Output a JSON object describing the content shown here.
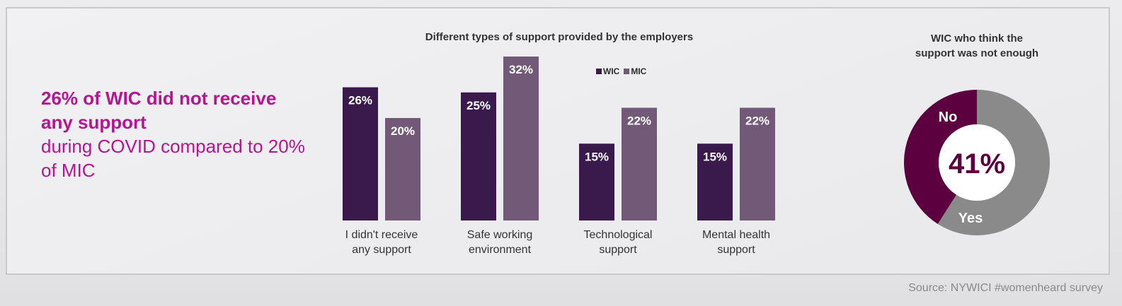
{
  "headline": {
    "strong": "26% of WIC did not receive any support",
    "rest": "during COVID compared to 20% of MIC"
  },
  "colors": {
    "wic": "#3a1a4d",
    "mic": "#735978",
    "no": "#5c0040",
    "yes": "#8a8a8a",
    "accent": "#b3168f"
  },
  "chart_data": [
    {
      "type": "bar",
      "title": "Different types of support provided by the employers",
      "categories": [
        "I didn't receive any support",
        "Safe working environment",
        "Technological support",
        "Mental health support"
      ],
      "category_lines": [
        [
          "I didn't receive",
          "any support"
        ],
        [
          "Safe working",
          "environment"
        ],
        [
          "Technological",
          "support"
        ],
        [
          "Mental health",
          "support"
        ]
      ],
      "series": [
        {
          "name": "WIC",
          "values": [
            26,
            25,
            15,
            15
          ],
          "labels": [
            "26%",
            "25%",
            "15%",
            "15%"
          ]
        },
        {
          "name": "MIC",
          "values": [
            20,
            32,
            22,
            22
          ],
          "labels": [
            "20%",
            "32%",
            "22%",
            "22%"
          ]
        }
      ],
      "ylim": [
        0,
        32
      ],
      "legend": "top-center"
    },
    {
      "type": "pie",
      "title": "WIC who think the support was not enough",
      "title_lines": [
        "WIC who think the",
        "support was not enough"
      ],
      "categories": [
        "No",
        "Yes"
      ],
      "values": [
        41,
        59
      ],
      "center_label": "41%"
    }
  ],
  "source": "Source: NYWICI #womenheard survey"
}
